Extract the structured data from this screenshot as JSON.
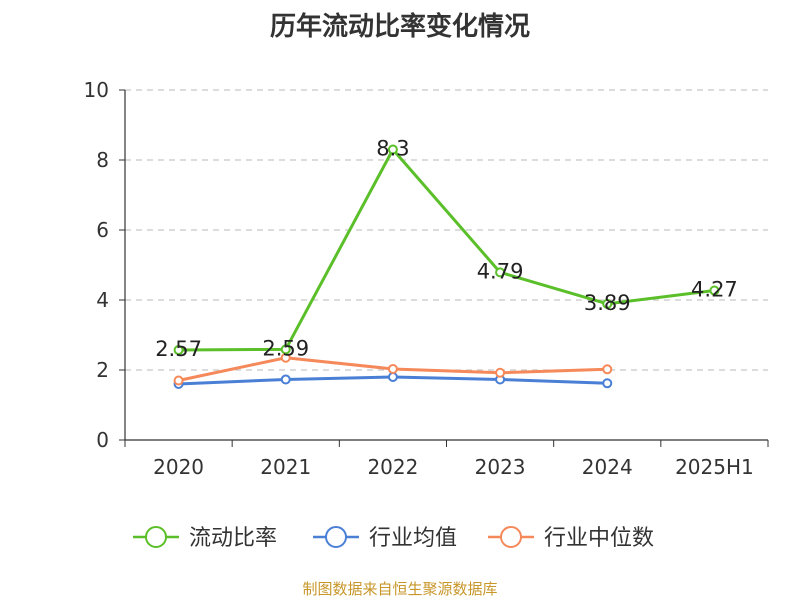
{
  "chart_data": {
    "type": "line",
    "title": "历年流动比率变化情况",
    "categories": [
      "2020",
      "2021",
      "2022",
      "2023",
      "2024",
      "2025H1"
    ],
    "ylim": [
      0,
      10
    ],
    "yticks": [
      0,
      2,
      4,
      6,
      8,
      10
    ],
    "grid": true,
    "legend_position": "bottom",
    "series": [
      {
        "name": "流动比率",
        "color": "#5bbf2a",
        "values": [
          2.57,
          2.59,
          8.3,
          4.79,
          3.89,
          4.27
        ],
        "labels": [
          "2.57",
          "2.59",
          "8.3",
          "4.79",
          "3.89",
          "4.27"
        ]
      },
      {
        "name": "行业均值",
        "color": "#4a7fd6",
        "values": [
          1.6,
          1.73,
          1.8,
          1.73,
          1.62,
          null
        ]
      },
      {
        "name": "行业中位数",
        "color": "#f5895a",
        "values": [
          1.7,
          2.35,
          2.03,
          1.92,
          2.02,
          null
        ]
      }
    ]
  },
  "source_note": "制图数据来自恒生聚源数据库"
}
